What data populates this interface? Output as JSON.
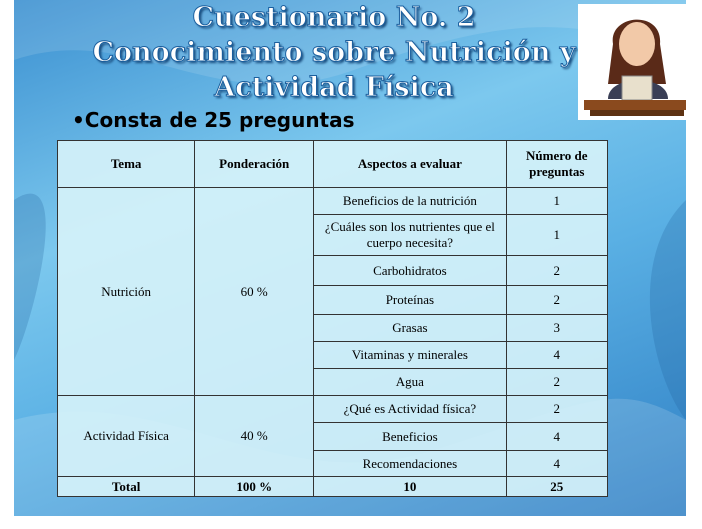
{
  "header": {
    "title": [
      "Cuestionario No. 2",
      "Conocimiento sobre Nutrición y",
      "Actividad Física"
    ]
  },
  "bullet": "Consta de 25 preguntas",
  "table": {
    "columns": [
      "Tema",
      "Ponderación",
      "Aspectos a evaluar",
      "Número de preguntas"
    ],
    "groups": [
      {
        "tema": "Nutrición",
        "ponderacion": "60 %",
        "items": [
          {
            "aspecto": "Beneficios de la nutrición",
            "numero": 1
          },
          {
            "aspecto": "¿Cuáles son los nutrientes que el cuerpo necesita?",
            "numero": 1
          },
          {
            "aspecto": "Carbohidratos",
            "numero": 2
          },
          {
            "aspecto": "Proteínas",
            "numero": 2
          },
          {
            "aspecto": "Grasas",
            "numero": 3
          },
          {
            "aspecto": "Vitaminas y minerales",
            "numero": 4
          },
          {
            "aspecto": "Agua",
            "numero": 2
          }
        ]
      },
      {
        "tema": "Actividad Física",
        "ponderacion": "40 %",
        "items": [
          {
            "aspecto": "¿Qué es Actividad física?",
            "numero": 2
          },
          {
            "aspecto": "Beneficios",
            "numero": 4
          },
          {
            "aspecto": "Recomendaciones",
            "numero": 4
          }
        ]
      }
    ],
    "total": {
      "label": "Total",
      "ponderacion": "100 %",
      "aspectos": 10,
      "numero": 25
    }
  }
}
